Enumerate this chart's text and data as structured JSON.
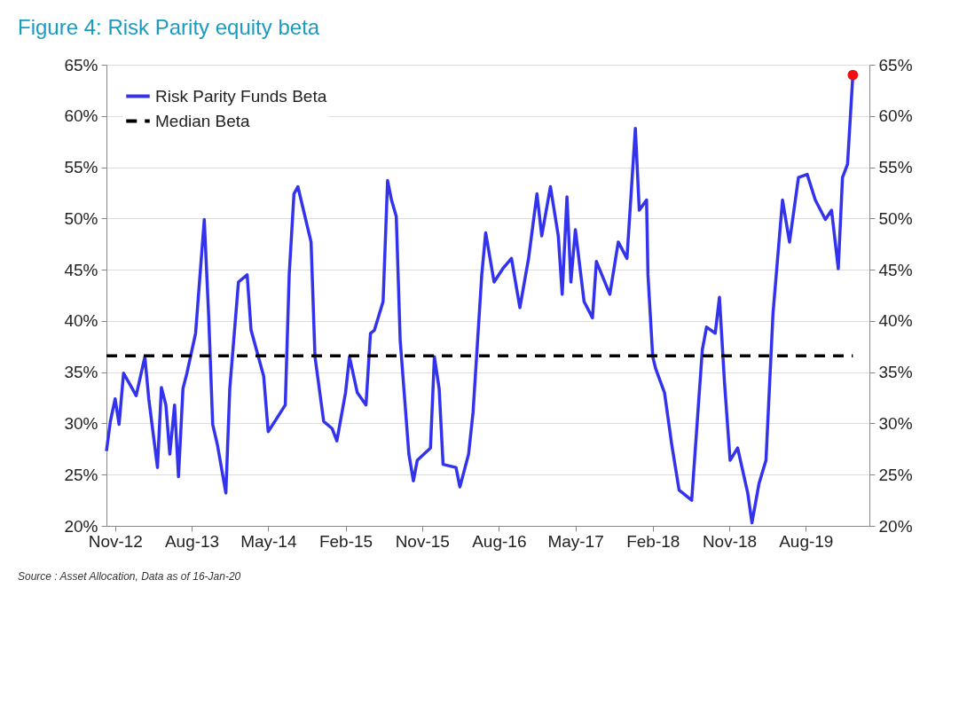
{
  "chart_data": {
    "type": "line",
    "title": "Figure 4: Risk Parity equity beta",
    "annotations": [
      "Source : Asset Allocation, Data as of 16-Jan-20"
    ],
    "xlim": [
      "2012-10-01",
      "2020-03-15"
    ],
    "xticks": [
      {
        "value": "2012-11-01",
        "label": "Nov-12"
      },
      {
        "value": "2013-08-01",
        "label": "Aug-13"
      },
      {
        "value": "2014-05-01",
        "label": "May-14"
      },
      {
        "value": "2015-02-01",
        "label": "Feb-15"
      },
      {
        "value": "2015-11-01",
        "label": "Nov-15"
      },
      {
        "value": "2016-08-01",
        "label": "Aug-16"
      },
      {
        "value": "2017-05-01",
        "label": "May-17"
      },
      {
        "value": "2018-02-01",
        "label": "Feb-18"
      },
      {
        "value": "2018-11-01",
        "label": "Nov-18"
      },
      {
        "value": "2019-08-01",
        "label": "Aug-19"
      }
    ],
    "ylim": [
      20,
      65
    ],
    "yticks": [
      {
        "value": 20,
        "label": "20%"
      },
      {
        "value": 25,
        "label": "25%"
      },
      {
        "value": 30,
        "label": "30%"
      },
      {
        "value": 35,
        "label": "35%"
      },
      {
        "value": 40,
        "label": "40%"
      },
      {
        "value": 45,
        "label": "45%"
      },
      {
        "value": 50,
        "label": "50%"
      },
      {
        "value": 55,
        "label": "55%"
      },
      {
        "value": 60,
        "label": "60%"
      },
      {
        "value": 65,
        "label": "65%"
      }
    ],
    "y2lim": [
      20,
      65
    ],
    "y2ticks": [
      {
        "value": 20,
        "label": "20%"
      },
      {
        "value": 25,
        "label": "25%"
      },
      {
        "value": 30,
        "label": "30%"
      },
      {
        "value": 35,
        "label": "35%"
      },
      {
        "value": 40,
        "label": "40%"
      },
      {
        "value": 45,
        "label": "45%"
      },
      {
        "value": 50,
        "label": "50%"
      },
      {
        "value": 55,
        "label": "55%"
      },
      {
        "value": 60,
        "label": "60%"
      },
      {
        "value": 65,
        "label": "65%"
      }
    ],
    "grid": "y",
    "legend": "top left",
    "series": [
      {
        "name": "Risk Parity Funds Beta",
        "color": "#3333ee",
        "line_style": "solid",
        "x": [
          "2012-10-01",
          "2012-10-15",
          "2012-11-01",
          "2012-11-15",
          "2012-12-01",
          "2013-01-01",
          "2013-01-15",
          "2013-02-15",
          "2013-03-01",
          "2013-04-01",
          "2013-04-15",
          "2013-05-01",
          "2013-05-15",
          "2013-06-01",
          "2013-06-15",
          "2013-07-01",
          "2013-07-15",
          "2013-08-15",
          "2013-09-15",
          "2013-10-01",
          "2013-10-15",
          "2013-11-01",
          "2013-12-01",
          "2013-12-15",
          "2014-01-15",
          "2014-02-15",
          "2014-03-01",
          "2014-04-15",
          "2014-05-01",
          "2014-06-01",
          "2014-07-01",
          "2014-07-15",
          "2014-08-01",
          "2014-08-15",
          "2014-10-01",
          "2014-10-15",
          "2014-11-15",
          "2014-12-15",
          "2015-01-01",
          "2015-02-01",
          "2015-02-15",
          "2015-03-15",
          "2015-04-15",
          "2015-05-01",
          "2015-05-15",
          "2015-06-15",
          "2015-07-01",
          "2015-07-15",
          "2015-08-01",
          "2015-08-15",
          "2015-09-15",
          "2015-10-01",
          "2015-10-15",
          "2015-12-01",
          "2015-12-15",
          "2016-01-01",
          "2016-01-15",
          "2016-03-01",
          "2016-03-15",
          "2016-04-15",
          "2016-05-01",
          "2016-06-01",
          "2016-06-15",
          "2016-07-15",
          "2016-08-15",
          "2016-09-15",
          "2016-10-15",
          "2016-11-15",
          "2016-12-15",
          "2017-01-01",
          "2017-02-01",
          "2017-03-01",
          "2017-03-15",
          "2017-04-01",
          "2017-04-15",
          "2017-05-01",
          "2017-06-01",
          "2017-07-01",
          "2017-07-15",
          "2017-09-01",
          "2017-10-01",
          "2017-11-01",
          "2017-12-01",
          "2017-12-15",
          "2018-01-10",
          "2018-01-15",
          "2018-02-01",
          "2018-02-12",
          "2018-03-15",
          "2018-04-10",
          "2018-05-06",
          "2018-06-20",
          "2018-07-28",
          "2018-08-12",
          "2018-09-12",
          "2018-09-27",
          "2018-10-15",
          "2018-11-04",
          "2018-12-01",
          "2019-01-06",
          "2019-01-21",
          "2019-02-15",
          "2019-03-12",
          "2019-04-06",
          "2019-05-10",
          "2019-06-04",
          "2019-07-06",
          "2019-08-06",
          "2019-09-04",
          "2019-10-10",
          "2019-11-01",
          "2019-11-25",
          "2019-12-10",
          "2019-12-28",
          "2020-01-16"
        ],
        "values": [
          27.3,
          30.2,
          32.4,
          29.9,
          34.9,
          33.4,
          32.7,
          36.5,
          32.4,
          25.7,
          33.5,
          31.8,
          27.0,
          31.8,
          24.8,
          33.4,
          34.9,
          38.8,
          49.9,
          40.3,
          29.9,
          27.9,
          23.2,
          33.4,
          43.8,
          44.5,
          39.1,
          34.6,
          29.2,
          30.5,
          31.8,
          44.5,
          52.4,
          53.1,
          47.7,
          36.5,
          30.2,
          29.5,
          28.3,
          33.0,
          36.5,
          33.0,
          31.8,
          38.8,
          39.1,
          41.9,
          53.7,
          51.8,
          50.2,
          38.1,
          27.0,
          24.4,
          26.4,
          27.6,
          36.5,
          33.4,
          26.0,
          25.7,
          23.8,
          27.0,
          31.1,
          44.5,
          48.6,
          43.8,
          45.1,
          46.1,
          41.3,
          46.1,
          52.4,
          48.3,
          53.1,
          48.3,
          42.6,
          52.1,
          43.8,
          48.9,
          41.9,
          40.3,
          45.8,
          42.6,
          47.7,
          46.1,
          58.8,
          50.8,
          51.8,
          44.5,
          36.5,
          35.3,
          33.0,
          27.9,
          23.5,
          22.5,
          37.2,
          39.4,
          38.8,
          42.3,
          34.0,
          26.4,
          27.6,
          23.2,
          20.3,
          24.1,
          26.4,
          40.7,
          51.8,
          47.7,
          54.0,
          54.3,
          51.8,
          49.9,
          50.8,
          45.1,
          54.0,
          55.3,
          64.0
        ]
      },
      {
        "name": "Median Beta",
        "color": "#000000",
        "line_style": "dashed",
        "x": [
          "2012-10-01",
          "2020-01-16"
        ],
        "values": [
          36.6,
          36.6
        ]
      },
      {
        "color": "#ee1111",
        "type": "scatter",
        "marker": "circle",
        "x": [
          "2020-01-16"
        ],
        "values": [
          64.0
        ]
      }
    ]
  }
}
